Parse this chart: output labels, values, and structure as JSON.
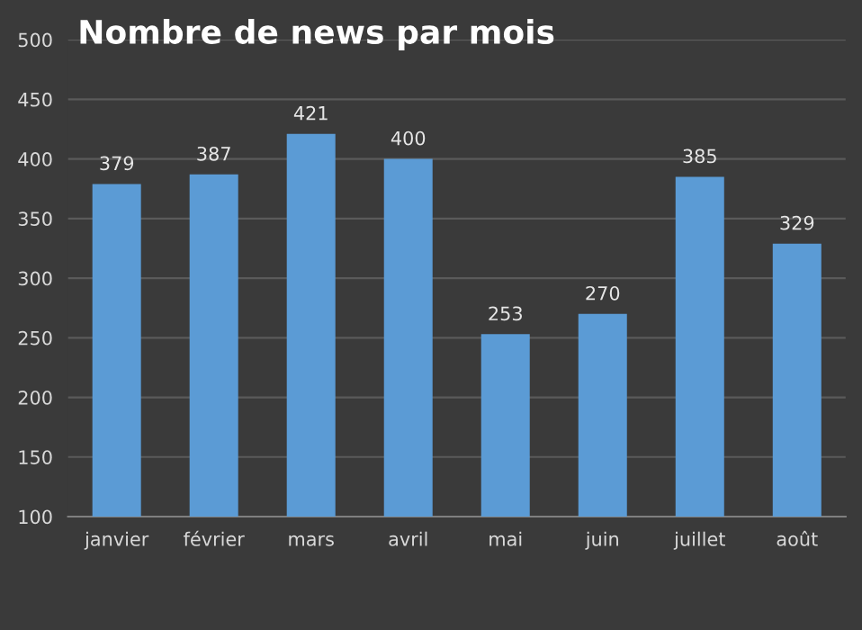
{
  "chart_data": {
    "type": "bar",
    "title": "Nombre de news par mois",
    "categories": [
      "janvier",
      "février",
      "mars",
      "avril",
      "mai",
      "juin",
      "juillet",
      "août"
    ],
    "values": [
      379,
      387,
      421,
      400,
      253,
      270,
      385,
      329
    ],
    "color": "#5b9bd5",
    "ylim": [
      100,
      500
    ],
    "yticks": [
      100,
      150,
      200,
      250,
      300,
      350,
      400,
      450,
      500
    ],
    "grid": "y",
    "data_labels": true
  }
}
